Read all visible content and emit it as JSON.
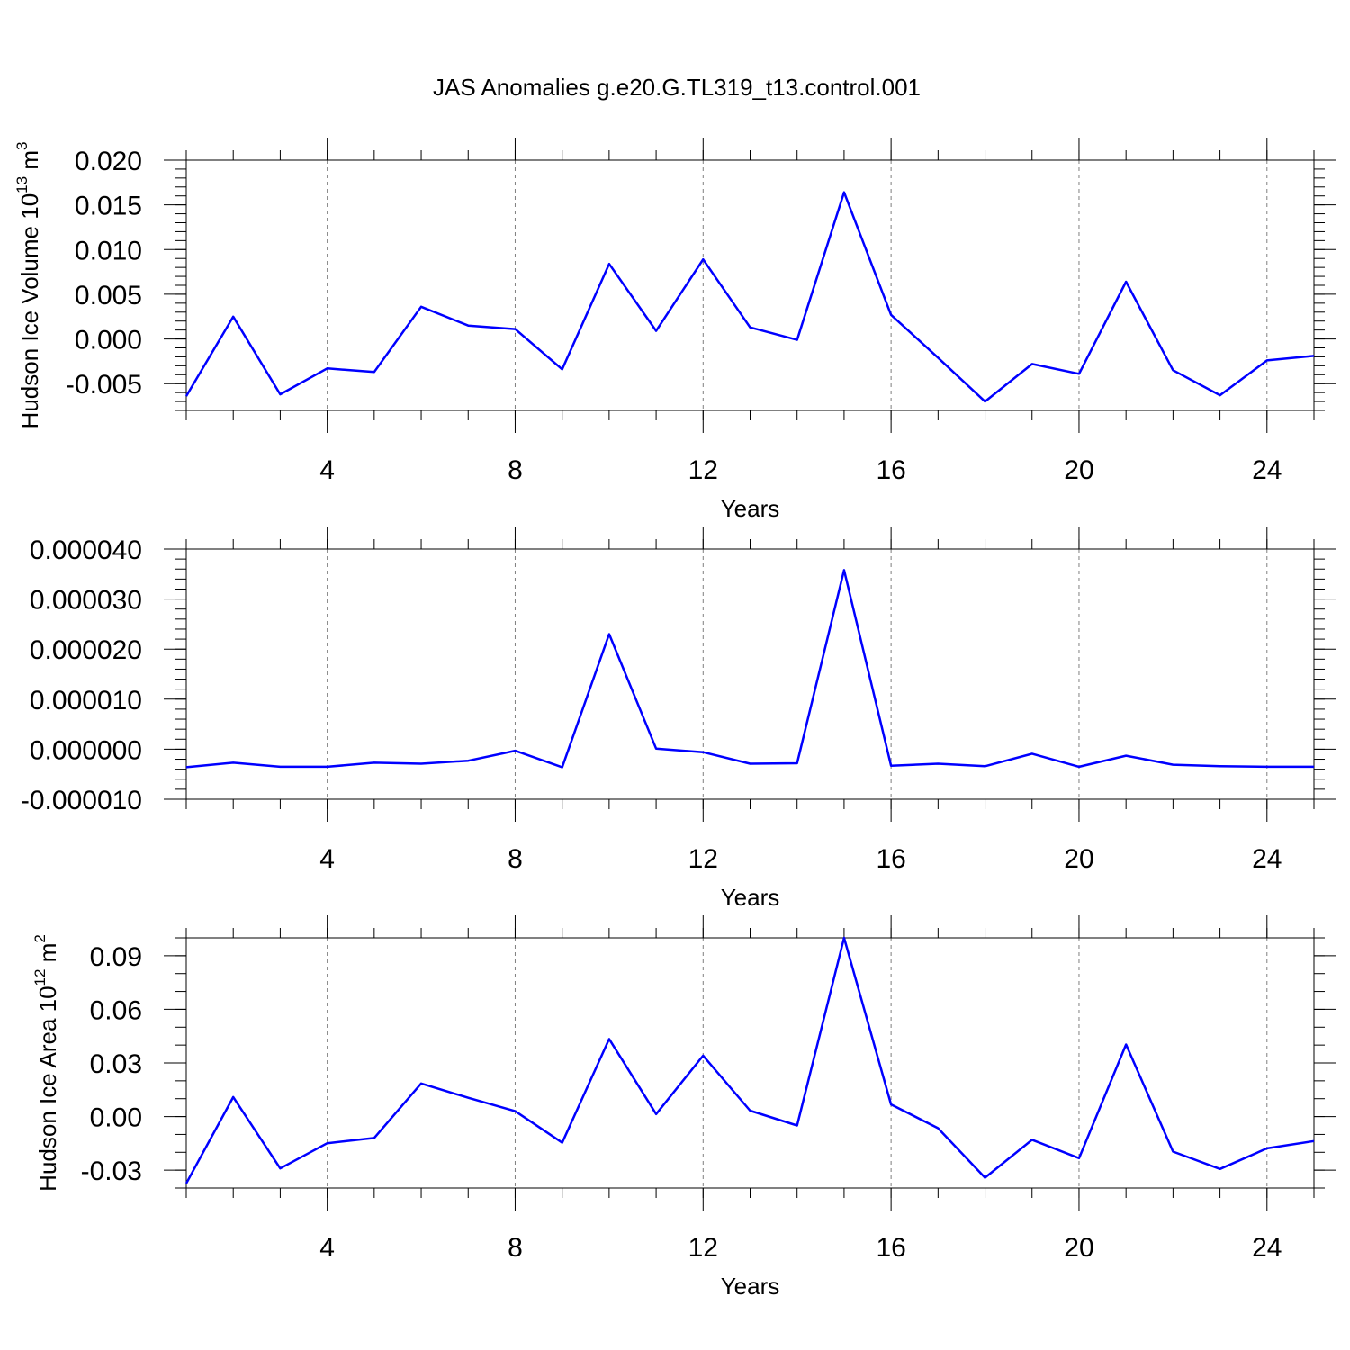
{
  "page": {
    "title": "JAS Anomalies g.e20.G.TL319_t13.control.001"
  },
  "colors": {
    "series": "#0000ff",
    "grid": "#7f7f7f",
    "axes": "#000000"
  },
  "chart_data": [
    {
      "type": "line",
      "title": "JAS Anomalies g.e20.G.TL319_t13.control.001",
      "xlabel": "Years",
      "ylabel": "Hudson Ice Volume 10",
      "ylabel_exp": "13",
      "ylabel_unit": " m",
      "ylabel_unit_exp": "3",
      "xlim": [
        1,
        25
      ],
      "ylim": [
        -0.008,
        0.02
      ],
      "xticks": [
        4,
        8,
        12,
        16,
        20,
        24
      ],
      "xtick_labels": [
        "4",
        "8",
        "12",
        "16",
        "20",
        "24"
      ],
      "yticks": [
        -0.005,
        0.0,
        0.005,
        0.01,
        0.015,
        0.02
      ],
      "ytick_labels": [
        "-0.005",
        "0.000",
        "0.005",
        "0.010",
        "0.015",
        "0.020"
      ],
      "yminor": 0.001,
      "grid": "vertical dashed at major x ticks",
      "x": [
        1,
        2,
        3,
        4,
        5,
        6,
        7,
        8,
        9,
        10,
        11,
        12,
        13,
        14,
        15,
        16,
        17,
        18,
        19,
        20,
        21,
        22,
        23,
        24,
        25
      ],
      "values": [
        -0.0064,
        0.0025,
        -0.0062,
        -0.0033,
        -0.0037,
        0.0036,
        0.0015,
        0.0011,
        -0.0034,
        0.0084,
        0.0009,
        0.0089,
        0.0013,
        -0.0001,
        0.0164,
        0.0027,
        -0.0021,
        -0.007,
        -0.0028,
        -0.0039,
        0.0064,
        -0.0035,
        -0.0063,
        -0.0024,
        -0.0019
      ]
    },
    {
      "type": "line",
      "xlabel": "Years",
      "ylabel": "",
      "xlim": [
        1,
        25
      ],
      "ylim": [
        -1e-05,
        4e-05
      ],
      "xticks": [
        4,
        8,
        12,
        16,
        20,
        24
      ],
      "xtick_labels": [
        "4",
        "8",
        "12",
        "16",
        "20",
        "24"
      ],
      "yticks": [
        -1e-05,
        0.0,
        1e-05,
        2e-05,
        3e-05,
        4e-05
      ],
      "ytick_labels": [
        "-0.000010",
        "0.000000",
        "0.000010",
        "0.000020",
        "0.000030",
        "0.000040"
      ],
      "yminor": 2e-06,
      "grid": "vertical dashed at major x ticks",
      "x": [
        1,
        2,
        3,
        4,
        5,
        6,
        7,
        8,
        9,
        10,
        11,
        12,
        13,
        14,
        15,
        16,
        17,
        18,
        19,
        20,
        21,
        22,
        23,
        24,
        25
      ],
      "values": [
        -3.6e-06,
        -2.7e-06,
        -3.5e-06,
        -3.5e-06,
        -2.7e-06,
        -2.9e-06,
        -2.3e-06,
        -3e-07,
        -3.6e-06,
        2.3e-05,
        1e-07,
        -6e-07,
        -2.9e-06,
        -2.8e-06,
        3.58e-05,
        -3.3e-06,
        -2.9e-06,
        -3.4e-06,
        -9e-07,
        -3.5e-06,
        -1.3e-06,
        -3.1e-06,
        -3.4e-06,
        -3.5e-06,
        -3.5e-06
      ]
    },
    {
      "type": "line",
      "xlabel": "Years",
      "ylabel": "Hudson Ice Area 10",
      "ylabel_exp": "12",
      "ylabel_unit": " m",
      "ylabel_unit_exp": "2",
      "xlim": [
        1,
        25
      ],
      "ylim": [
        -0.04,
        0.1
      ],
      "xticks": [
        4,
        8,
        12,
        16,
        20,
        24
      ],
      "xtick_labels": [
        "4",
        "8",
        "12",
        "16",
        "20",
        "24"
      ],
      "yticks": [
        -0.03,
        0.0,
        0.03,
        0.06,
        0.09
      ],
      "ytick_labels": [
        "-0.03",
        "0.00",
        "0.03",
        "0.06",
        "0.09"
      ],
      "yminor": 0.01,
      "grid": "vertical dashed at major x ticks",
      "x": [
        1,
        2,
        3,
        4,
        5,
        6,
        7,
        8,
        9,
        10,
        11,
        12,
        13,
        14,
        15,
        16,
        17,
        18,
        19,
        20,
        21,
        22,
        23,
        24,
        25
      ],
      "values": [
        -0.0374,
        0.0109,
        -0.029,
        -0.0149,
        -0.012,
        0.0185,
        0.0105,
        0.003,
        -0.0146,
        0.0434,
        0.0014,
        0.0341,
        0.0033,
        -0.005,
        0.1,
        0.0068,
        -0.0065,
        -0.0342,
        -0.013,
        -0.0233,
        0.0403,
        -0.0196,
        -0.0293,
        -0.0178,
        -0.0137
      ]
    }
  ]
}
